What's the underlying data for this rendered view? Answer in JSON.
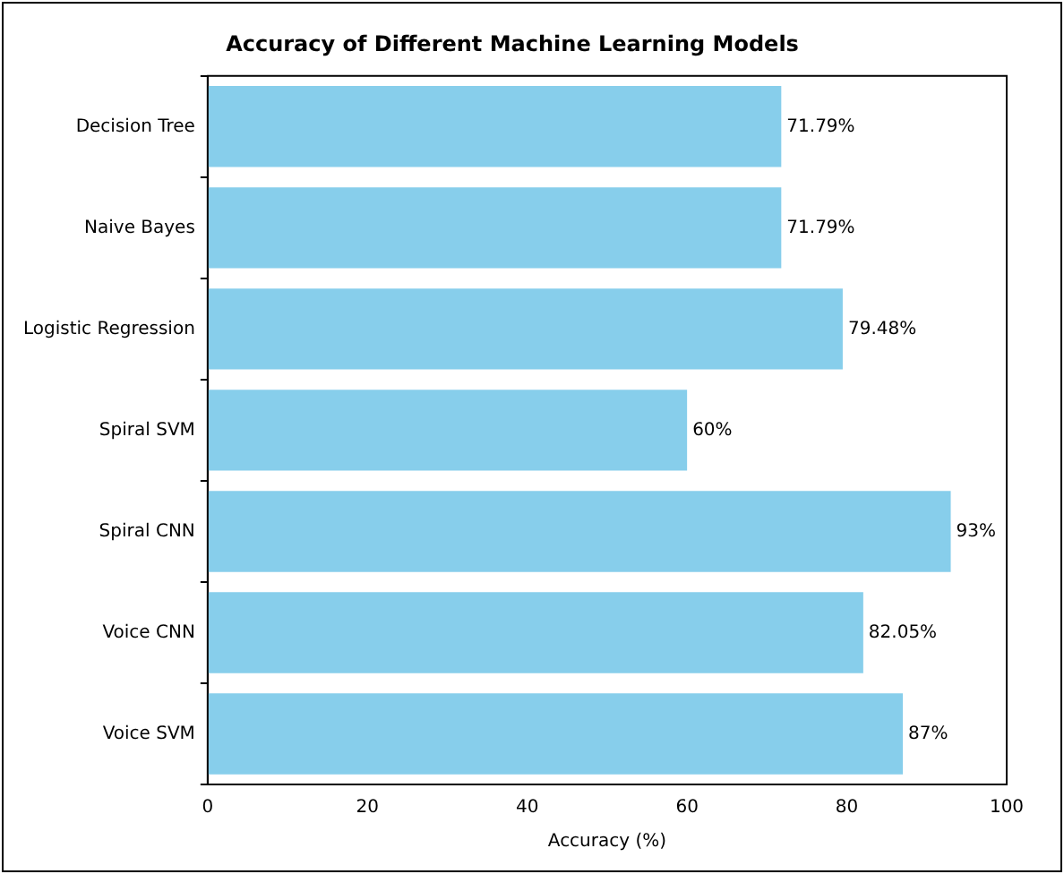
{
  "chart_data": {
    "type": "bar",
    "orientation": "horizontal",
    "title": "Accuracy of Different Machine Learning Models",
    "xlabel": "Accuracy (%)",
    "categories": [
      "Decision Tree",
      "Naive Bayes",
      "Logistic Regression",
      "Spiral SVM",
      "Spiral CNN",
      "Voice CNN",
      "Voice SVM"
    ],
    "values": [
      71.79,
      71.79,
      79.48,
      60,
      93,
      82.05,
      87
    ],
    "value_labels": [
      "71.79%",
      "71.79%",
      "79.48%",
      "60%",
      "93%",
      "82.05%",
      "87%"
    ],
    "color": "#87ceeb",
    "xlim": [
      0,
      100
    ],
    "xticks": [
      0,
      20,
      40,
      60,
      80,
      100
    ],
    "grid": false,
    "legend": false
  }
}
